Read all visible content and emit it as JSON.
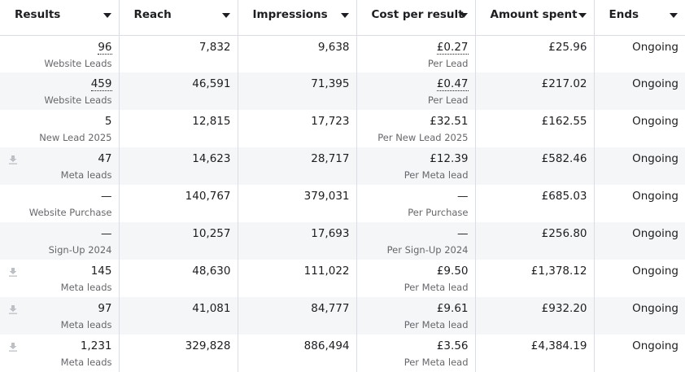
{
  "columns": [
    "Results",
    "Reach",
    "Impressions",
    "Cost per result",
    "Amount spent",
    "Ends"
  ],
  "rows": [
    {
      "result": "96",
      "result_type": "Website Leads",
      "reach": "7,832",
      "impressions": "9,638",
      "cost": "£0.27",
      "cost_type": "Per Lead",
      "spent": "£25.96",
      "ends": "Ongoing",
      "dotted": true,
      "download": false
    },
    {
      "result": "459",
      "result_type": "Website Leads",
      "reach": "46,591",
      "impressions": "71,395",
      "cost": "£0.47",
      "cost_type": "Per Lead",
      "spent": "£217.02",
      "ends": "Ongoing",
      "dotted": true,
      "download": false
    },
    {
      "result": "5",
      "result_type": "New Lead 2025",
      "reach": "12,815",
      "impressions": "17,723",
      "cost": "£32.51",
      "cost_type": "Per New Lead 2025",
      "spent": "£162.55",
      "ends": "Ongoing",
      "dotted": false,
      "download": false
    },
    {
      "result": "47",
      "result_type": "Meta leads",
      "reach": "14,623",
      "impressions": "28,717",
      "cost": "£12.39",
      "cost_type": "Per Meta lead",
      "spent": "£582.46",
      "ends": "Ongoing",
      "dotted": false,
      "download": true
    },
    {
      "result": "—",
      "result_type": "Website Purchase",
      "reach": "140,767",
      "impressions": "379,031",
      "cost": "—",
      "cost_type": "Per Purchase",
      "spent": "£685.03",
      "ends": "Ongoing",
      "dotted": false,
      "download": false
    },
    {
      "result": "—",
      "result_type": "Sign-Up 2024",
      "reach": "10,257",
      "impressions": "17,693",
      "cost": "—",
      "cost_type": "Per Sign-Up 2024",
      "spent": "£256.80",
      "ends": "Ongoing",
      "dotted": false,
      "download": false
    },
    {
      "result": "145",
      "result_type": "Meta leads",
      "reach": "48,630",
      "impressions": "111,022",
      "cost": "£9.50",
      "cost_type": "Per Meta lead",
      "spent": "£1,378.12",
      "ends": "Ongoing",
      "dotted": false,
      "download": true
    },
    {
      "result": "97",
      "result_type": "Meta leads",
      "reach": "41,081",
      "impressions": "84,777",
      "cost": "£9.61",
      "cost_type": "Per Meta lead",
      "spent": "£932.20",
      "ends": "Ongoing",
      "dotted": false,
      "download": true
    },
    {
      "result": "1,231",
      "result_type": "Meta leads",
      "reach": "329,828",
      "impressions": "886,494",
      "cost": "£3.56",
      "cost_type": "Per Meta lead",
      "spent": "£4,384.19",
      "ends": "Ongoing",
      "dotted": false,
      "download": true
    }
  ],
  "colors": {
    "border": "#dadde1",
    "alt_row": "#f5f6f7",
    "subtext": "#65676b",
    "icon": "#bcc0c4"
  }
}
